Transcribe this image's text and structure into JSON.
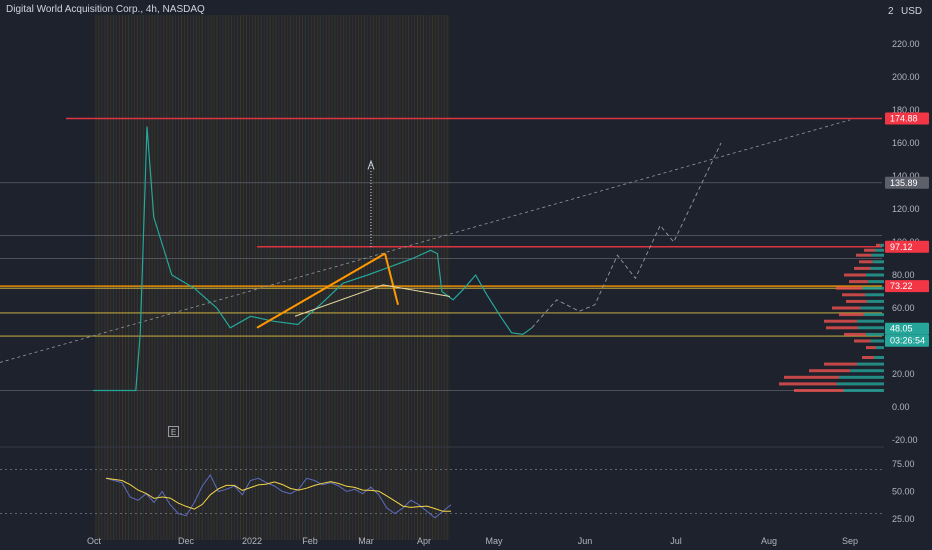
{
  "header": {
    "title": "Digital World Acquisition Corp., 4h, NASDAQ",
    "scale_indicator": "2",
    "currency": "USD"
  },
  "colors": {
    "background": "#1e222d",
    "red_line": "#f23645",
    "orange_line": "#ff9800",
    "yellow_line": "#f5d547",
    "gray_line": "#787b86",
    "volume_up": "#26a69a",
    "volume_down": "#ef5350",
    "rsi_line": "#5c6bc0",
    "rsi_ma": "#f5d547"
  },
  "chart_data": [
    {
      "type": "line",
      "title": "Digital World Acquisition Corp., 4h, NASDAQ",
      "yaxis_labels": [
        "220.00",
        "200.00",
        "180.00",
        "160.00",
        "140.00",
        "120.00",
        "100.00",
        "80.00",
        "60.00",
        "40.00",
        "20.00",
        "0.00",
        "-20.00"
      ],
      "xaxis_labels": [
        "Oct",
        "Dec",
        "2022",
        "Feb",
        "Mar",
        "Apr",
        "May",
        "Jun",
        "Jul",
        "Aug",
        "Sep"
      ],
      "ylim": [
        -20,
        230
      ],
      "price_series": {
        "x": [
          "2021-10-01",
          "2021-10-20",
          "2021-10-22",
          "2021-10-25",
          "2021-10-28",
          "2021-11-05",
          "2021-11-15",
          "2021-11-25",
          "2021-12-01",
          "2021-12-10",
          "2021-12-20",
          "2021-12-31",
          "2022-01-10",
          "2022-01-20",
          "2022-01-31",
          "2022-02-10",
          "2022-02-20",
          "2022-02-28",
          "2022-03-03",
          "2022-03-05",
          "2022-03-10",
          "2022-03-15",
          "2022-03-20",
          "2022-03-25",
          "2022-03-31",
          "2022-04-05",
          "2022-04-10",
          "2022-04-14"
        ],
        "y": [
          10,
          10,
          45,
          170,
          115,
          80,
          72,
          60,
          48,
          55,
          52,
          50,
          62,
          75,
          80,
          85,
          90,
          95,
          93,
          70,
          65,
          72,
          80,
          68,
          55,
          45,
          44,
          48
        ]
      },
      "price_tags": [
        {
          "value": "174.88",
          "color": "#f23645"
        },
        {
          "value": "135.89",
          "color": "#5d606b"
        },
        {
          "value": "97.12",
          "color": "#f23645"
        },
        {
          "value": "73.22",
          "color": "#f23645"
        },
        {
          "value": "48.05",
          "color": "#26a69a"
        },
        {
          "value": "03:26:54",
          "color": "#26a69a"
        }
      ],
      "levels": [
        {
          "price": 174.88,
          "kind": "red"
        },
        {
          "price": 135.89,
          "kind": "gray"
        },
        {
          "price": 104,
          "kind": "gray"
        },
        {
          "price": 97.12,
          "kind": "red"
        },
        {
          "price": 90,
          "kind": "gray"
        },
        {
          "price": 73.22,
          "kind": "orange"
        },
        {
          "price": 72,
          "kind": "yellow"
        },
        {
          "price": 57,
          "kind": "yellow"
        },
        {
          "price": 43,
          "kind": "yellow"
        },
        {
          "price": 10,
          "kind": "gray"
        }
      ],
      "projection_path": [
        {
          "x": "2022-04-14",
          "y": 48
        },
        {
          "x": "2022-04-25",
          "y": 65
        },
        {
          "x": "2022-05-05",
          "y": 58
        },
        {
          "x": "2022-05-12",
          "y": 62
        },
        {
          "x": "2022-05-22",
          "y": 92
        },
        {
          "x": "2022-05-30",
          "y": 78
        },
        {
          "x": "2022-06-10",
          "y": 110
        },
        {
          "x": "2022-06-16",
          "y": 100
        },
        {
          "x": "2022-07-07",
          "y": 160
        }
      ]
    },
    {
      "type": "line",
      "title": "",
      "yaxis_labels": [
        "75.00",
        "50.00",
        "25.00"
      ],
      "ylim": [
        18,
        88
      ],
      "rsi_values": [
        62,
        60,
        58,
        45,
        42,
        48,
        40,
        50,
        38,
        30,
        28,
        40,
        55,
        65,
        50,
        52,
        55,
        47,
        60,
        62,
        58,
        55,
        50,
        48,
        52,
        62,
        60,
        56,
        58,
        55,
        50,
        52,
        48,
        54,
        47,
        35,
        30,
        35,
        42,
        38,
        32,
        26,
        32,
        38
      ]
    }
  ]
}
